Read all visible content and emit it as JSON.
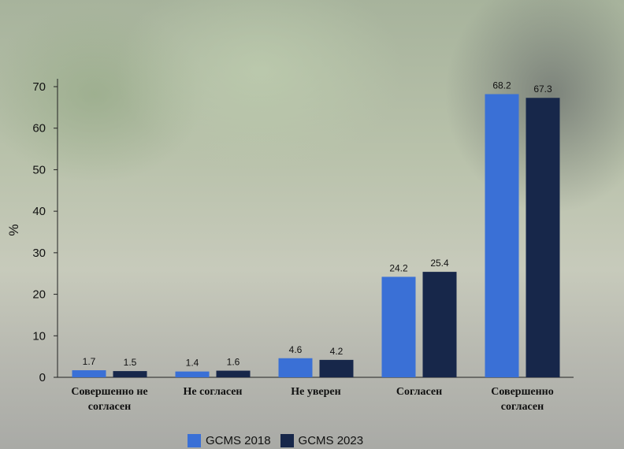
{
  "chart_data": {
    "type": "bar",
    "title": "",
    "xlabel": "",
    "ylabel": "%",
    "ylim": [
      0,
      70
    ],
    "yticks": [
      0,
      10,
      20,
      30,
      40,
      50,
      60,
      70
    ],
    "grid": false,
    "legend_position": "bottom-center",
    "categories": [
      "Совершенно не согласен",
      "Не согласен",
      "Не уверен",
      "Согласен",
      "Совершенно согласен"
    ],
    "category_lines": [
      [
        "Совершенно не",
        "согласен"
      ],
      [
        "Не согласен"
      ],
      [
        "Не уверен"
      ],
      [
        "Согласен"
      ],
      [
        "Совершенно",
        "согласен"
      ]
    ],
    "series": [
      {
        "name": "GCMS 2018",
        "color": "#3a70d6",
        "values": [
          1.7,
          1.4,
          4.6,
          24.2,
          68.2
        ]
      },
      {
        "name": "GCMS 2023",
        "color": "#17274a",
        "values": [
          1.5,
          1.6,
          4.2,
          25.4,
          67.3
        ]
      }
    ]
  }
}
